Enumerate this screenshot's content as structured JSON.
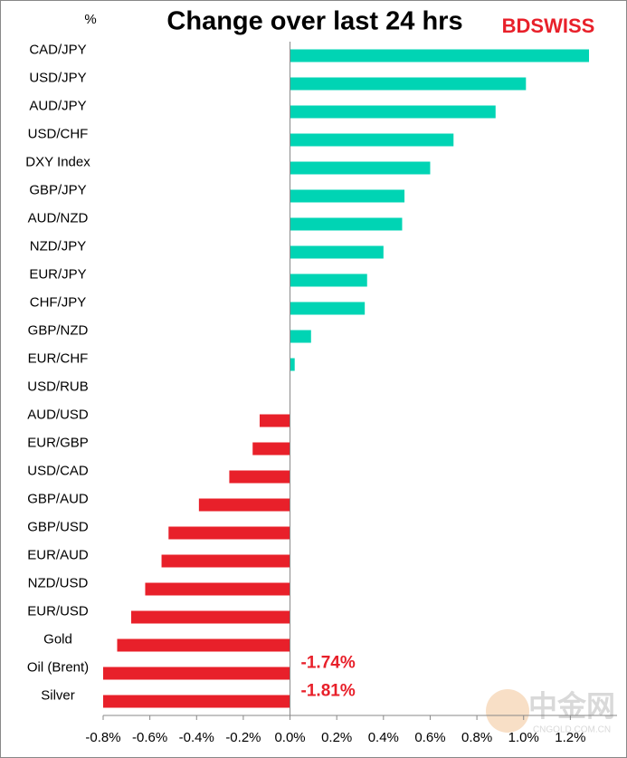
{
  "chart_data": {
    "type": "bar",
    "orientation": "horizontal",
    "title": "Change over last 24 hrs",
    "y_axis_label": "%",
    "logo": "BDSWISS",
    "watermark": "中金网",
    "watermark_url": "CNGOLD.COM.CN",
    "categories": [
      "CAD/JPY",
      "USD/JPY",
      "AUD/JPY",
      "USD/CHF",
      "DXY Index",
      "GBP/JPY",
      "AUD/NZD",
      "NZD/JPY",
      "EUR/JPY",
      "CHF/JPY",
      "GBP/NZD",
      "EUR/CHF",
      "USD/RUB",
      "AUD/USD",
      "EUR/GBP",
      "USD/CAD",
      "GBP/AUD",
      "GBP/USD",
      "EUR/AUD",
      "NZD/USD",
      "EUR/USD",
      "Gold",
      "Oil (Brent)",
      "Silver"
    ],
    "values": [
      1.28,
      1.01,
      0.88,
      0.7,
      0.6,
      0.49,
      0.48,
      0.4,
      0.33,
      0.32,
      0.09,
      0.02,
      0,
      -0.13,
      -0.16,
      -0.26,
      -0.39,
      -0.52,
      -0.55,
      -0.62,
      -0.68,
      -0.74,
      -1.74,
      -1.81
    ],
    "value_labels": [
      null,
      null,
      null,
      null,
      null,
      null,
      null,
      null,
      null,
      null,
      null,
      null,
      null,
      null,
      null,
      null,
      null,
      null,
      null,
      null,
      null,
      null,
      "-1.74%",
      "-1.81%"
    ],
    "positive_color": "#00d4b4",
    "negative_color": "#e8202a",
    "xlim": [
      -0.8,
      1.4
    ],
    "xticks": [
      {
        "value": -0.8,
        "label": "-0.8%"
      },
      {
        "value": -0.6,
        "label": "-0.6%"
      },
      {
        "value": -0.4,
        "label": "-0.4%"
      },
      {
        "value": -0.2,
        "label": "-0.2%"
      },
      {
        "value": 0,
        "label": "0.0%"
      },
      {
        "value": 0.2,
        "label": "0.2%"
      },
      {
        "value": 0.4,
        "label": "0.4%"
      },
      {
        "value": 0.6,
        "label": "0.6%"
      },
      {
        "value": 0.8,
        "label": "0.8%"
      },
      {
        "value": 1.0,
        "label": "1.0%"
      },
      {
        "value": 1.2,
        "label": "1.2%"
      }
    ],
    "grid": false
  }
}
